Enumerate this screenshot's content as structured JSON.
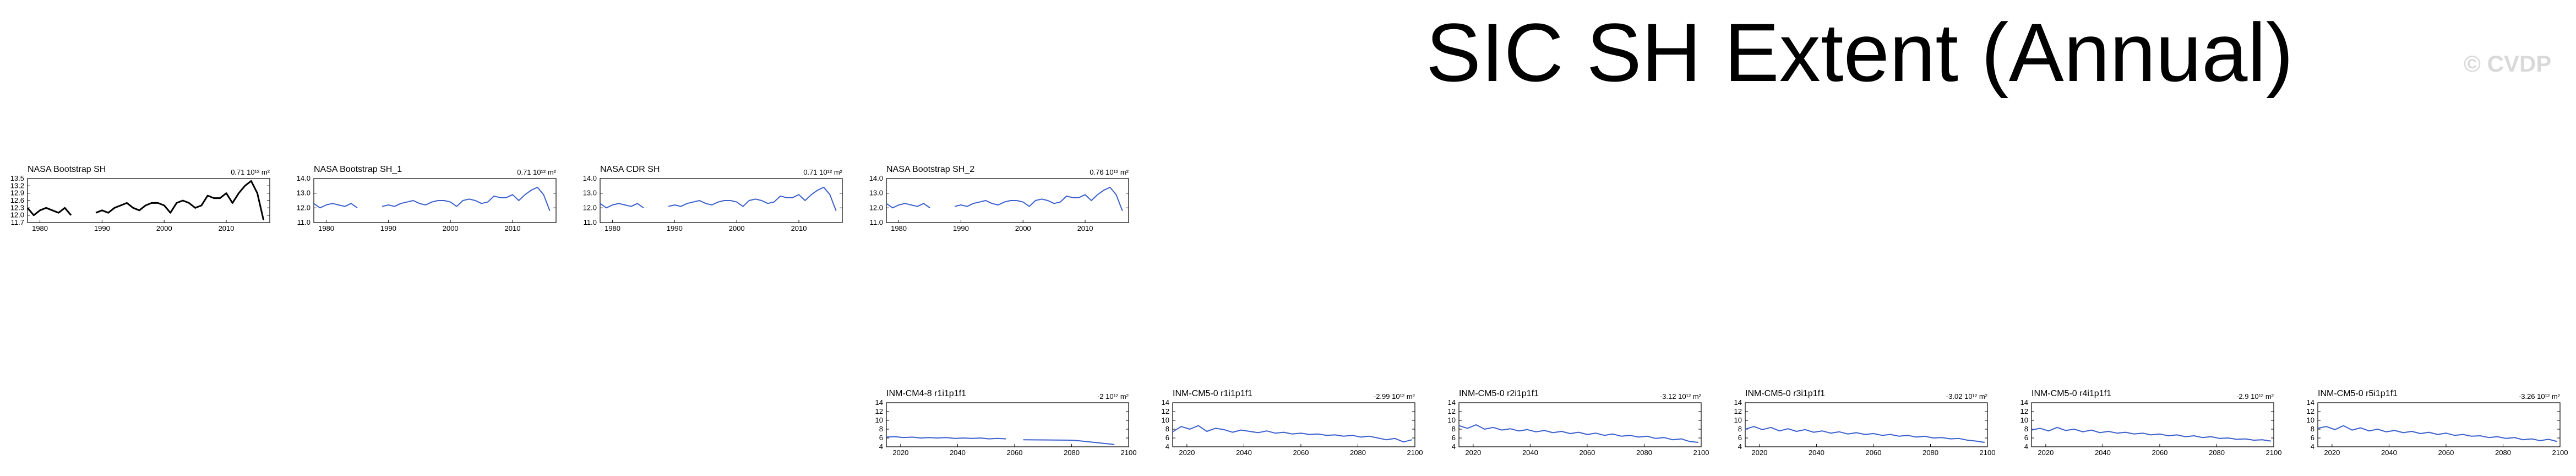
{
  "title": "SIC SH Extent (Annual)",
  "watermark": "© CVDP",
  "colors": {
    "observed": "#000000",
    "model": "#3a5fcd",
    "axis": "#000000"
  },
  "chart_data": [
    {
      "type": "line",
      "title": "NASA Bootstrap SH",
      "trend_label": "0.71 10¹² m²",
      "color": "#000000",
      "xlim": [
        1978,
        2017
      ],
      "xticks": [
        1980,
        1990,
        2000,
        2010
      ],
      "ylim": [
        11.7,
        13.5
      ],
      "yticks": [
        "11.7",
        "12.0",
        "12.3",
        "12.6",
        "12.9",
        "13.2",
        "13.5"
      ],
      "x": [
        1978,
        1979,
        1980,
        1981,
        1982,
        1983,
        1984,
        1985,
        1986,
        1987,
        1988,
        1989,
        1990,
        1991,
        1992,
        1993,
        1994,
        1995,
        1996,
        1997,
        1998,
        1999,
        2000,
        2001,
        2002,
        2003,
        2004,
        2005,
        2006,
        2007,
        2008,
        2009,
        2010,
        2011,
        2012,
        2013,
        2014,
        2015,
        2016
      ],
      "y": [
        12.3,
        12.0,
        12.2,
        12.3,
        12.2,
        12.1,
        12.3,
        12.0,
        null,
        null,
        null,
        12.1,
        12.2,
        12.1,
        12.3,
        12.4,
        12.5,
        12.3,
        12.2,
        12.4,
        12.5,
        12.5,
        12.4,
        12.1,
        12.5,
        12.6,
        12.5,
        12.3,
        12.4,
        12.8,
        12.7,
        12.7,
        12.9,
        12.5,
        12.9,
        13.2,
        13.4,
        12.9,
        11.8
      ]
    },
    {
      "type": "line",
      "title": "NASA Bootstrap SH_1",
      "trend_label": "0.71 10¹² m²",
      "color": "#3a5fcd",
      "xlim": [
        1978,
        2017
      ],
      "xticks": [
        1980,
        1990,
        2000,
        2010
      ],
      "ylim": [
        11.0,
        14.0
      ],
      "yticks": [
        "11.0",
        "12.0",
        "13.0",
        "14.0"
      ],
      "x": [
        1978,
        1979,
        1980,
        1981,
        1982,
        1983,
        1984,
        1985,
        1986,
        1987,
        1988,
        1989,
        1990,
        1991,
        1992,
        1993,
        1994,
        1995,
        1996,
        1997,
        1998,
        1999,
        2000,
        2001,
        2002,
        2003,
        2004,
        2005,
        2006,
        2007,
        2008,
        2009,
        2010,
        2011,
        2012,
        2013,
        2014,
        2015,
        2016
      ],
      "y": [
        12.3,
        12.0,
        12.2,
        12.3,
        12.2,
        12.1,
        12.3,
        12.0,
        null,
        null,
        null,
        12.1,
        12.2,
        12.1,
        12.3,
        12.4,
        12.5,
        12.3,
        12.2,
        12.4,
        12.5,
        12.5,
        12.4,
        12.1,
        12.5,
        12.6,
        12.5,
        12.3,
        12.4,
        12.8,
        12.7,
        12.7,
        12.9,
        12.5,
        12.9,
        13.2,
        13.4,
        12.9,
        11.8
      ]
    },
    {
      "type": "line",
      "title": "NASA CDR SH",
      "trend_label": "0.71 10¹² m²",
      "color": "#3a5fcd",
      "xlim": [
        1978,
        2017
      ],
      "xticks": [
        1980,
        1990,
        2000,
        2010
      ],
      "ylim": [
        11.0,
        14.0
      ],
      "yticks": [
        "11.0",
        "12.0",
        "13.0",
        "14.0"
      ],
      "x": [
        1978,
        1979,
        1980,
        1981,
        1982,
        1983,
        1984,
        1985,
        1986,
        1987,
        1988,
        1989,
        1990,
        1991,
        1992,
        1993,
        1994,
        1995,
        1996,
        1997,
        1998,
        1999,
        2000,
        2001,
        2002,
        2003,
        2004,
        2005,
        2006,
        2007,
        2008,
        2009,
        2010,
        2011,
        2012,
        2013,
        2014,
        2015,
        2016
      ],
      "y": [
        12.3,
        12.0,
        12.2,
        12.3,
        12.2,
        12.1,
        12.3,
        12.0,
        null,
        null,
        null,
        12.1,
        12.2,
        12.1,
        12.3,
        12.4,
        12.5,
        12.3,
        12.2,
        12.4,
        12.5,
        12.5,
        12.4,
        12.1,
        12.5,
        12.6,
        12.5,
        12.3,
        12.4,
        12.8,
        12.7,
        12.7,
        12.9,
        12.5,
        12.9,
        13.2,
        13.4,
        12.9,
        11.8
      ]
    },
    {
      "type": "line",
      "title": "NASA Bootstrap SH_2",
      "trend_label": "0.76 10¹² m²",
      "color": "#3a5fcd",
      "xlim": [
        1978,
        2017
      ],
      "xticks": [
        1980,
        1990,
        2000,
        2010
      ],
      "ylim": [
        11.0,
        14.0
      ],
      "yticks": [
        "11.0",
        "12.0",
        "13.0",
        "14.0"
      ],
      "x": [
        1978,
        1979,
        1980,
        1981,
        1982,
        1983,
        1984,
        1985,
        1986,
        1987,
        1988,
        1989,
        1990,
        1991,
        1992,
        1993,
        1994,
        1995,
        1996,
        1997,
        1998,
        1999,
        2000,
        2001,
        2002,
        2003,
        2004,
        2005,
        2006,
        2007,
        2008,
        2009,
        2010,
        2011,
        2012,
        2013,
        2014,
        2015,
        2016
      ],
      "y": [
        12.3,
        12.0,
        12.2,
        12.3,
        12.2,
        12.1,
        12.3,
        12.0,
        null,
        null,
        null,
        12.1,
        12.2,
        12.1,
        12.3,
        12.4,
        12.5,
        12.3,
        12.2,
        12.4,
        12.5,
        12.5,
        12.4,
        12.1,
        12.5,
        12.6,
        12.5,
        12.3,
        12.4,
        12.8,
        12.7,
        12.7,
        12.9,
        12.5,
        12.9,
        13.2,
        13.4,
        12.9,
        11.8
      ]
    },
    {
      "type": "line",
      "title": "INM-CM4-8 r1i1p1f1",
      "trend_label": "-2 10¹² m²",
      "color": "#3a5fcd",
      "xlim": [
        2015,
        2100
      ],
      "xticks": [
        2020,
        2040,
        2060,
        2080,
        2100
      ],
      "ylim": [
        4,
        14
      ],
      "yticks": [
        "4",
        "6",
        "8",
        "10",
        "12",
        "14"
      ],
      "x": [
        2015,
        2018,
        2021,
        2024,
        2027,
        2030,
        2033,
        2036,
        2039,
        2042,
        2045,
        2048,
        2051,
        2054,
        2057,
        2060,
        2063,
        2080,
        2082,
        2094,
        2095
      ],
      "y": [
        6.2,
        6.3,
        6.1,
        6.2,
        6.0,
        6.1,
        6.0,
        6.1,
        5.9,
        6.0,
        5.9,
        6.0,
        5.8,
        5.9,
        5.8,
        null,
        5.6,
        5.5,
        5.4,
        4.6,
        4.5
      ]
    },
    {
      "type": "line",
      "title": "INM-CM5-0 r1i1p1f1",
      "trend_label": "-2.99 10¹² m²",
      "color": "#3a5fcd",
      "xlim": [
        2015,
        2100
      ],
      "xticks": [
        2020,
        2040,
        2060,
        2080,
        2100
      ],
      "ylim": [
        4,
        14
      ],
      "yticks": [
        "4",
        "6",
        "8",
        "10",
        "12",
        "14"
      ],
      "x": [
        2015,
        2018,
        2021,
        2024,
        2027,
        2030,
        2033,
        2036,
        2039,
        2042,
        2045,
        2048,
        2051,
        2054,
        2057,
        2060,
        2063,
        2066,
        2069,
        2072,
        2075,
        2078,
        2081,
        2084,
        2087,
        2090,
        2093,
        2096,
        2099
      ],
      "y": [
        7.4,
        8.6,
        8.0,
        8.8,
        7.5,
        8.2,
        7.9,
        7.3,
        7.8,
        7.5,
        7.2,
        7.6,
        7.1,
        7.3,
        6.9,
        7.1,
        6.8,
        6.9,
        6.6,
        6.7,
        6.4,
        6.6,
        6.2,
        6.4,
        6.0,
        5.6,
        5.9,
        5.1,
        5.6
      ]
    },
    {
      "type": "line",
      "title": "INM-CM5-0 r2i1p1f1",
      "trend_label": "-3.12 10¹² m²",
      "color": "#3a5fcd",
      "xlim": [
        2015,
        2100
      ],
      "xticks": [
        2020,
        2040,
        2060,
        2080,
        2100
      ],
      "ylim": [
        4,
        14
      ],
      "yticks": [
        "4",
        "6",
        "8",
        "10",
        "12",
        "14"
      ],
      "x": [
        2015,
        2018,
        2021,
        2024,
        2027,
        2030,
        2033,
        2036,
        2039,
        2042,
        2045,
        2048,
        2051,
        2054,
        2057,
        2060,
        2063,
        2066,
        2069,
        2072,
        2075,
        2078,
        2081,
        2084,
        2087,
        2090,
        2093,
        2096,
        2099
      ],
      "y": [
        8.8,
        8.2,
        9.0,
        8.0,
        8.4,
        7.8,
        8.1,
        7.6,
        7.9,
        7.4,
        7.7,
        7.2,
        7.5,
        7.0,
        7.3,
        6.8,
        7.1,
        6.6,
        6.9,
        6.4,
        6.6,
        6.2,
        6.4,
        5.9,
        6.1,
        5.6,
        5.8,
        5.2,
        5.0
      ]
    },
    {
      "type": "line",
      "title": "INM-CM5-0 r3i1p1f1",
      "trend_label": "-3.02 10¹² m²",
      "color": "#3a5fcd",
      "xlim": [
        2015,
        2100
      ],
      "xticks": [
        2020,
        2040,
        2060,
        2080,
        2100
      ],
      "ylim": [
        4,
        14
      ],
      "yticks": [
        "4",
        "6",
        "8",
        "10",
        "12",
        "14"
      ],
      "x": [
        2015,
        2018,
        2021,
        2024,
        2027,
        2030,
        2033,
        2036,
        2039,
        2042,
        2045,
        2048,
        2051,
        2054,
        2057,
        2060,
        2063,
        2066,
        2069,
        2072,
        2075,
        2078,
        2081,
        2084,
        2087,
        2090,
        2093,
        2096,
        2099
      ],
      "y": [
        8.0,
        8.6,
        7.9,
        8.4,
        7.6,
        8.1,
        7.5,
        7.9,
        7.3,
        7.6,
        7.1,
        7.4,
        6.9,
        7.2,
        6.8,
        7.0,
        6.6,
        6.8,
        6.4,
        6.6,
        6.2,
        6.4,
        6.0,
        6.1,
        5.8,
        5.9,
        5.5,
        5.3,
        5.0
      ]
    },
    {
      "type": "line",
      "title": "INM-CM5-0 r4i1p1f1",
      "trend_label": "-2.9 10¹² m²",
      "color": "#3a5fcd",
      "xlim": [
        2015,
        2100
      ],
      "xticks": [
        2020,
        2040,
        2060,
        2080,
        2100
      ],
      "ylim": [
        4,
        14
      ],
      "yticks": [
        "4",
        "6",
        "8",
        "10",
        "12",
        "14"
      ],
      "x": [
        2015,
        2018,
        2021,
        2024,
        2027,
        2030,
        2033,
        2036,
        2039,
        2042,
        2045,
        2048,
        2051,
        2054,
        2057,
        2060,
        2063,
        2066,
        2069,
        2072,
        2075,
        2078,
        2081,
        2084,
        2087,
        2090,
        2093,
        2096,
        2099
      ],
      "y": [
        7.8,
        8.2,
        7.6,
        8.4,
        7.7,
        8.0,
        7.4,
        7.8,
        7.2,
        7.5,
        7.1,
        7.3,
        6.9,
        7.1,
        6.7,
        6.9,
        6.5,
        6.7,
        6.3,
        6.5,
        6.1,
        6.3,
        5.9,
        6.0,
        5.7,
        5.8,
        5.5,
        5.6,
        5.3
      ]
    },
    {
      "type": "line",
      "title": "INM-CM5-0 r5i1p1f1",
      "trend_label": "-3.26 10¹² m²",
      "color": "#3a5fcd",
      "xlim": [
        2015,
        2100
      ],
      "xticks": [
        2020,
        2040,
        2060,
        2080,
        2100
      ],
      "ylim": [
        4,
        14
      ],
      "yticks": [
        "4",
        "6",
        "8",
        "10",
        "12",
        "14"
      ],
      "x": [
        2015,
        2018,
        2021,
        2024,
        2027,
        2030,
        2033,
        2036,
        2039,
        2042,
        2045,
        2048,
        2051,
        2054,
        2057,
        2060,
        2063,
        2066,
        2069,
        2072,
        2075,
        2078,
        2081,
        2084,
        2087,
        2090,
        2093,
        2096,
        2099
      ],
      "y": [
        8.2,
        8.6,
        7.9,
        8.8,
        7.8,
        8.3,
        7.6,
        8.0,
        7.4,
        7.7,
        7.2,
        7.5,
        7.0,
        7.3,
        6.8,
        7.1,
        6.6,
        6.8,
        6.4,
        6.5,
        6.1,
        6.3,
        5.9,
        6.1,
        5.6,
        5.8,
        5.4,
        5.7,
        5.2
      ]
    }
  ]
}
